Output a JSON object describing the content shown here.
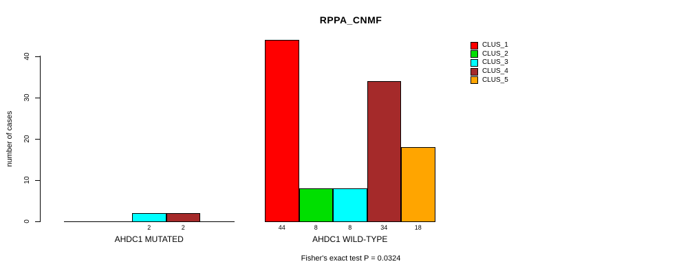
{
  "title": "RPPA_CNMF",
  "y_axis": {
    "label": "number of cases",
    "ticks": [
      0,
      10,
      20,
      30,
      40
    ]
  },
  "legend": {
    "position": "top-right",
    "items": [
      {
        "label": "CLUS_1",
        "color": "#FF0000"
      },
      {
        "label": "CLUS_2",
        "color": "#00DF00"
      },
      {
        "label": "CLUS_3",
        "color": "#00FFFF"
      },
      {
        "label": "CLUS_4",
        "color": "#A52A2A"
      },
      {
        "label": "CLUS_5",
        "color": "#FFA500"
      }
    ]
  },
  "footer": {
    "caption": "Fisher's exact test P = 0.0324"
  },
  "chart_data": {
    "type": "bar",
    "title": "RPPA_CNMF",
    "xlabel": "",
    "ylabel": "number of cases",
    "ylim": [
      0,
      44
    ],
    "yticks": [
      0,
      10,
      20,
      30,
      40
    ],
    "grid": false,
    "legend_position": "top-right",
    "series_names": [
      "CLUS_1",
      "CLUS_2",
      "CLUS_3",
      "CLUS_4",
      "CLUS_5"
    ],
    "colors": [
      "#FF0000",
      "#00DF00",
      "#00FFFF",
      "#A52A2A",
      "#FFA500"
    ],
    "groups": [
      {
        "label": "AHDC1 MUTATED",
        "values": [
          0,
          0,
          2,
          2,
          0
        ],
        "bar_labels": [
          "",
          "",
          "2",
          "2",
          ""
        ]
      },
      {
        "label": "AHDC1 WILD-TYPE",
        "values": [
          44,
          8,
          8,
          34,
          18
        ],
        "bar_labels": [
          "44",
          "8",
          "8",
          "34",
          "18"
        ]
      }
    ],
    "annotation": "Fisher's exact test P = 0.0324"
  }
}
